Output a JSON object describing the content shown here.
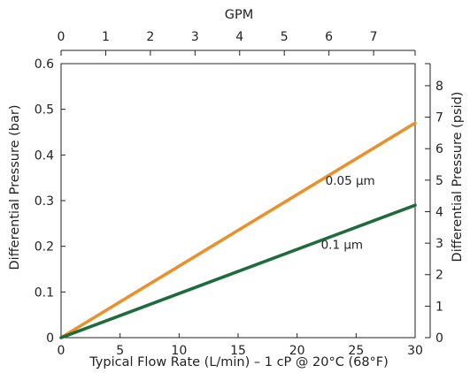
{
  "chart_data": {
    "type": "line",
    "title": "",
    "xlabel": "Typical Flow Rate (L/min) – 1 cP @ 20°C (68°F)",
    "ylabel": "Differential Pressure (bar)",
    "x2label": "GPM",
    "y2label": "Differential Pressure (psid)",
    "xlim": [
      0,
      30
    ],
    "ylim": [
      0,
      0.6
    ],
    "x2lim": [
      0,
      7.93
    ],
    "y2lim": [
      0,
      8.7
    ],
    "x_ticks": [
      "0",
      "5",
      "10",
      "15",
      "20",
      "25",
      "30"
    ],
    "y_ticks": [
      "0",
      "0.1",
      "0.2",
      "0.3",
      "0.4",
      "0.5",
      "0.6"
    ],
    "x2_ticks": [
      "0",
      "1",
      "2",
      "3",
      "4",
      "5",
      "6",
      "7"
    ],
    "y2_ticks": [
      "0",
      "1",
      "2",
      "3",
      "4",
      "5",
      "6",
      "7",
      "8"
    ],
    "grid": false,
    "legend": "none",
    "series": [
      {
        "name": "0.05 µm",
        "color": "#e8922e",
        "x": [
          0,
          30
        ],
        "y": [
          0,
          0.47
        ]
      },
      {
        "name": "0.1 µm",
        "color": "#1e6b3c",
        "x": [
          0,
          30
        ],
        "y": [
          0,
          0.29
        ]
      }
    ]
  }
}
